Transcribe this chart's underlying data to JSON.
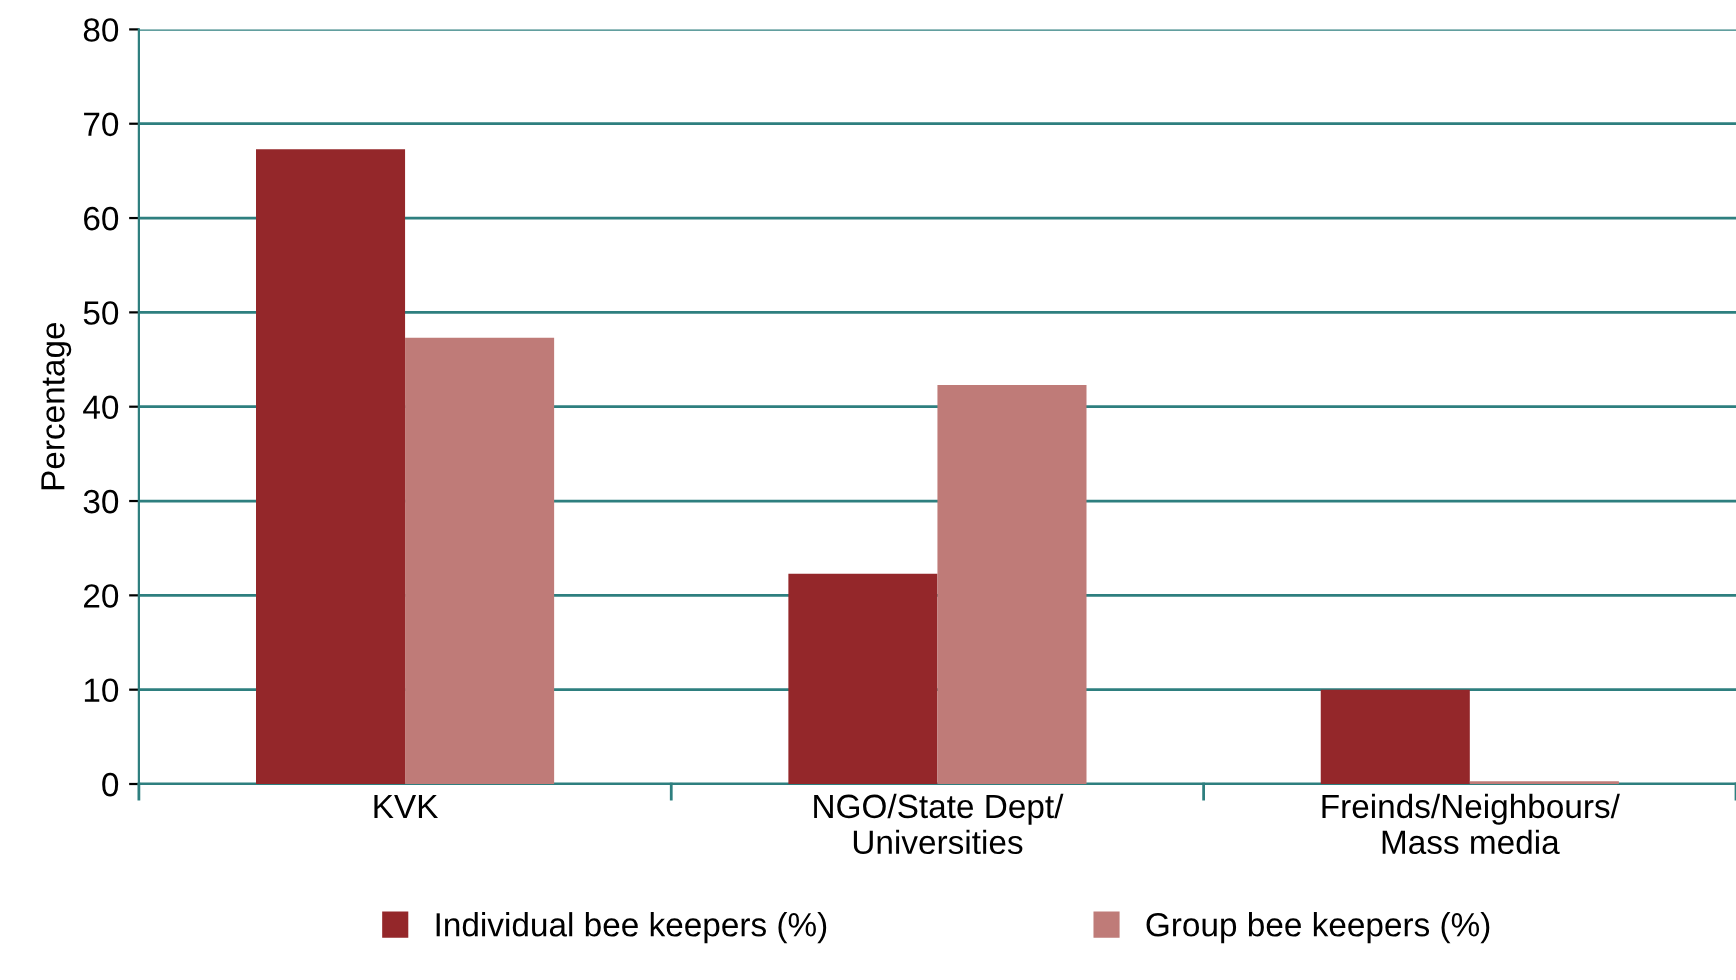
{
  "chart_data": {
    "type": "bar",
    "ylabel": "Percentage",
    "categories": [
      "KVK",
      "NGO/State Dept/\nUniversities",
      "Freinds/Neighbours/\nMass media"
    ],
    "series": [
      {
        "name": "Individual bee keepers (%)",
        "color": "#94272a",
        "values": [
          67.3,
          22.3,
          10
        ]
      },
      {
        "name": "Group bee keepers (%)",
        "color": "#bf7b78",
        "values": [
          47.3,
          42.3,
          0.3
        ]
      }
    ],
    "ylim": [
      0,
      80
    ],
    "yticks": [
      0,
      10,
      20,
      30,
      40,
      50,
      60,
      70,
      80
    ],
    "grid": "y",
    "legend": "bottom"
  }
}
